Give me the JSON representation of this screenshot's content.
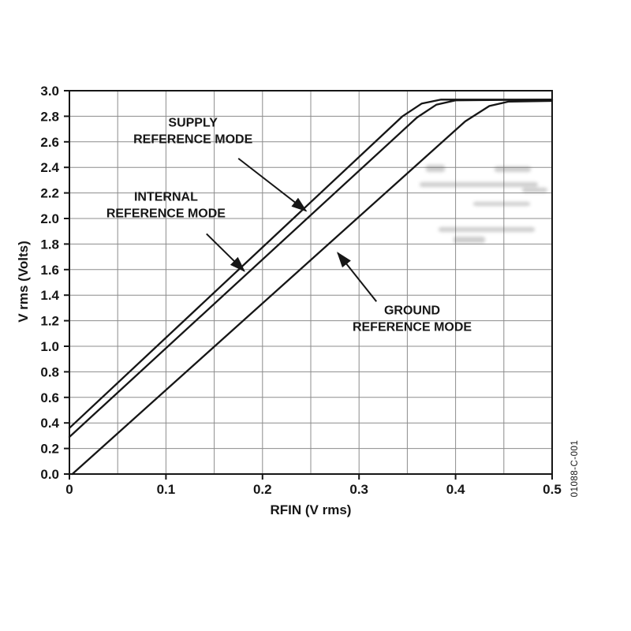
{
  "figure_code": "01088-C-001",
  "chart_data": {
    "type": "line",
    "title": "",
    "xlabel": "RFIN (V rms)",
    "ylabel": "V rms (Volts)",
    "xlim": [
      0,
      0.5
    ],
    "ylim": [
      0,
      3.0
    ],
    "x_ticks": [
      0,
      0.1,
      0.2,
      0.3,
      0.4,
      0.5
    ],
    "x_tick_labels": [
      "0",
      "0.1",
      "0.2",
      "0.3",
      "0.4",
      "0.5"
    ],
    "y_ticks": [
      0,
      0.2,
      0.4,
      0.6,
      0.8,
      1.0,
      1.2,
      1.4,
      1.6,
      1.8,
      2.0,
      2.2,
      2.4,
      2.6,
      2.8,
      3.0
    ],
    "y_tick_labels": [
      "0.0",
      "0.2",
      "0.4",
      "0.6",
      "0.8",
      "1.0",
      "1.2",
      "1.4",
      "1.6",
      "1.8",
      "2.0",
      "2.2",
      "2.4",
      "2.6",
      "2.8",
      "3.0"
    ],
    "x_grid_interval": 0.05,
    "y_grid_interval": 0.2,
    "grid": true,
    "legend": "none",
    "grid_color": "#8c8c8c",
    "line_color": "#161616",
    "series": [
      {
        "name": "SUPPLY REFERENCE MODE",
        "points": [
          [
            0,
            0.36
          ],
          [
            0.345,
            2.8
          ],
          [
            0.365,
            2.9
          ],
          [
            0.385,
            2.93
          ],
          [
            0.5,
            2.93
          ]
        ]
      },
      {
        "name": "INTERNAL REFERENCE MODE",
        "points": [
          [
            0,
            0.29
          ],
          [
            0.36,
            2.79
          ],
          [
            0.38,
            2.89
          ],
          [
            0.4,
            2.925
          ],
          [
            0.5,
            2.93
          ]
        ]
      },
      {
        "name": "GROUND REFERENCE MODE",
        "points": [
          [
            0.003,
            0
          ],
          [
            0.41,
            2.76
          ],
          [
            0.435,
            2.88
          ],
          [
            0.455,
            2.915
          ],
          [
            0.5,
            2.92
          ]
        ]
      }
    ],
    "annotations": [
      {
        "lines": [
          "SUPPLY",
          "REFERENCE MODE"
        ],
        "x": 0.128,
        "y": 2.72,
        "arrow_from": [
          0.175,
          2.47
        ],
        "arrow_to": [
          0.245,
          2.06
        ]
      },
      {
        "lines": [
          "INTERNAL",
          "REFERENCE MODE"
        ],
        "x": 0.1,
        "y": 2.14,
        "arrow_from": [
          0.142,
          1.88
        ],
        "arrow_to": [
          0.181,
          1.59
        ]
      },
      {
        "lines": [
          "GROUND",
          "REFERENCE MODE"
        ],
        "x": 0.355,
        "y": 1.25,
        "arrow_from": [
          0.318,
          1.35
        ],
        "arrow_to": [
          0.278,
          1.73
        ]
      }
    ]
  }
}
